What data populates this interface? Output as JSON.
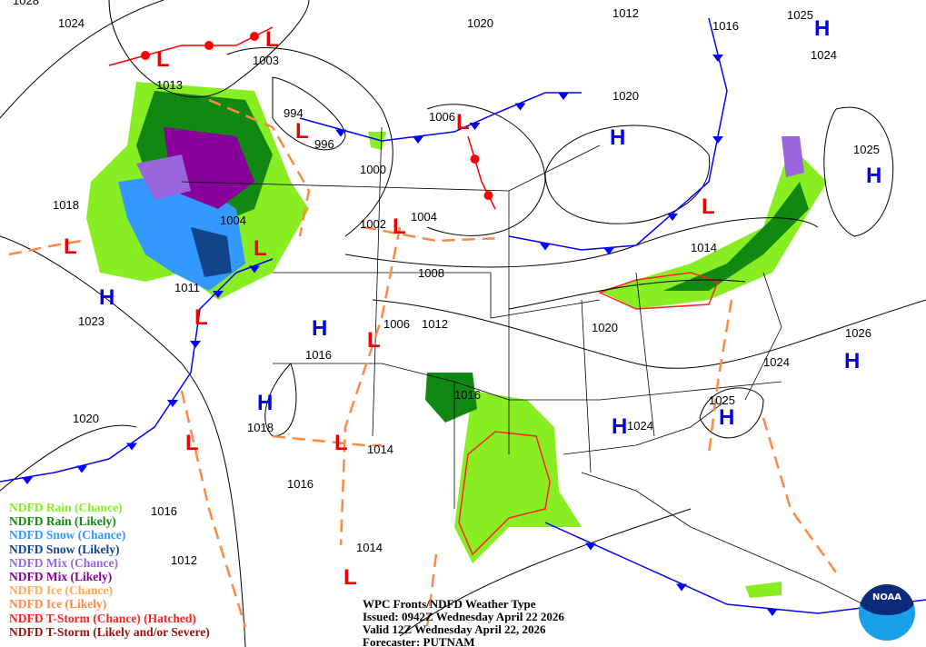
{
  "legend": [
    {
      "label": "NDFD Rain (Chance)",
      "color": "#88ee22"
    },
    {
      "label": "NDFD Rain (Likely)",
      "color": "#118811"
    },
    {
      "label": "NDFD Snow (Chance)",
      "color": "#3399ff"
    },
    {
      "label": "NDFD Snow (Likely)",
      "color": "#114488"
    },
    {
      "label": "NDFD Mix (Chance)",
      "color": "#9966dd"
    },
    {
      "label": "NDFD Mix (Likely)",
      "color": "#880099"
    },
    {
      "label": "NDFD Ice (Chance)",
      "color": "#ffaa55"
    },
    {
      "label": "NDFD Ice (Likely)",
      "color": "#ff8844"
    },
    {
      "label": "NDFD T-Storm (Chance) (Hatched)",
      "color": "#ff2222"
    },
    {
      "label": "NDFD T-Storm (Likely and/or Severe)",
      "color": "#991111"
    }
  ],
  "caption": {
    "title": "WPC Fronts/NDFD Weather Type",
    "issued": "Issued: 0942Z Wednesday April 22 2026",
    "valid": "Valid 12Z Wednesday April 22, 2026",
    "forecaster": "Forecaster: PUTNAM"
  },
  "logo_text": "NOAA",
  "isobar_labels": [
    "1028",
    "1024",
    "1020",
    "1012",
    "1016",
    "1025",
    "1024",
    "1003",
    "1013",
    "994",
    "1006",
    "1020",
    "996",
    "1000",
    "1025",
    "1018",
    "1004",
    "1002",
    "1004",
    "1014",
    "1008",
    "1011",
    "1023",
    "1006",
    "1012",
    "1020",
    "1016",
    "1026",
    "1024",
    "1016",
    "1025",
    "1018",
    "1024",
    "1020",
    "1014",
    "1016",
    "1016",
    "1012",
    "1014"
  ],
  "high_symbol": "H",
  "low_symbol": "L",
  "colors": {
    "high": "#0000ee",
    "low": "#ee0000",
    "cold_front": "#0000ff",
    "warm_front": "#ff0000",
    "trough": "#ff8844"
  }
}
